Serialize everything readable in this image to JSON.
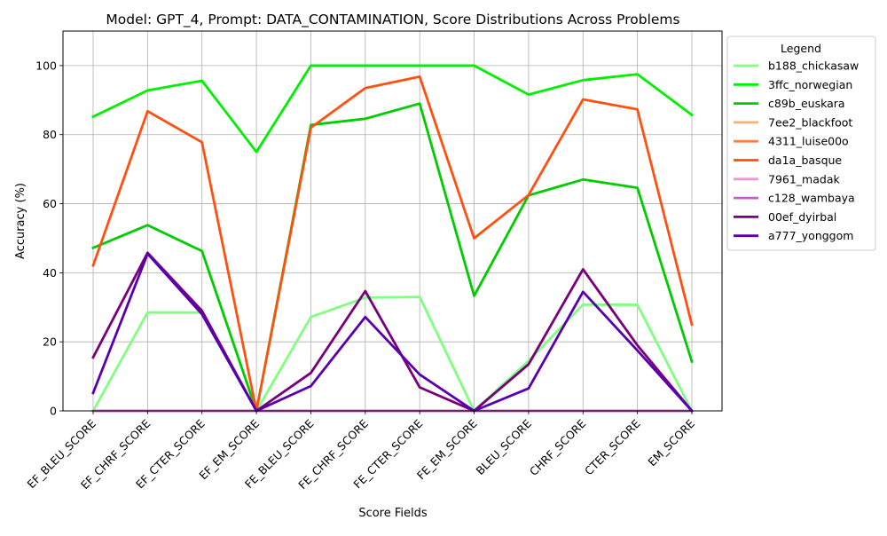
{
  "chart_data": {
    "type": "line",
    "title": "Model: GPT_4, Prompt: DATA_CONTAMINATION, Score Distributions Across Problems",
    "xlabel": "Score Fields",
    "ylabel": "Accuracy (%)",
    "ylim": [
      0,
      110
    ],
    "yticks": [
      0,
      20,
      40,
      60,
      80,
      100
    ],
    "grid": true,
    "legend_title": "Legend",
    "legend_position": "outside-right-top",
    "categories": [
      "EF_BLEU_SCORE",
      "EF_CHRF_SCORE",
      "EF_CTER_SCORE",
      "EF_EM_SCORE",
      "FE_BLEU_SCORE",
      "FE_CHRF_SCORE",
      "FE_CTER_SCORE",
      "FE_EM_SCORE",
      "BLEU_SCORE",
      "CHRF_SCORE",
      "CTER_SCORE",
      "EM_SCORE"
    ],
    "series": [
      {
        "name": "b188_chickasaw",
        "color": "#80ff80",
        "values": [
          0,
          28.5,
          28.5,
          0,
          27.2,
          32.8,
          33,
          0,
          14.5,
          30.8,
          30.7,
          0
        ]
      },
      {
        "name": "3ffc_norwegian",
        "color": "#00f000",
        "values": [
          85.2,
          92.8,
          95.6,
          75.0,
          100,
          100,
          100,
          100,
          91.6,
          95.8,
          97.5,
          85.7
        ]
      },
      {
        "name": "c89b_euskara",
        "color": "#00cc00",
        "values": [
          47.2,
          53.8,
          46.3,
          0,
          82.8,
          84.6,
          89.0,
          33.3,
          62.4,
          67.0,
          64.6,
          14.3
        ]
      },
      {
        "name": "7ee2_blackfoot",
        "color": "#ffb070",
        "values": [
          0,
          0,
          0,
          0,
          0,
          0,
          0,
          0,
          0,
          0,
          0,
          0
        ]
      },
      {
        "name": "4311_luise00o",
        "color": "#ff8040",
        "values": [
          0,
          0,
          0,
          0,
          0,
          0,
          0,
          0,
          0,
          0,
          0,
          0
        ]
      },
      {
        "name": "da1a_basque",
        "color": "#ff5010",
        "values": [
          42.1,
          86.8,
          77.8,
          0,
          82.0,
          93.5,
          96.8,
          50.0,
          62.5,
          90.2,
          87.3,
          25.0
        ]
      },
      {
        "name": "7961_madak",
        "color": "#e898d0",
        "values": [
          0,
          0,
          0,
          0,
          0,
          0,
          0,
          0,
          0,
          0,
          0,
          0
        ]
      },
      {
        "name": "c128_wambaya",
        "color": "#c060c8",
        "values": [
          0,
          0,
          0,
          0,
          0,
          0,
          0,
          0,
          0,
          0,
          0,
          0
        ]
      },
      {
        "name": "00ef_dyirbal",
        "color": "#7a007a",
        "values": [
          15.5,
          45.8,
          29.0,
          0,
          11.0,
          34.7,
          6.8,
          0,
          13.5,
          41.0,
          19.0,
          0
        ]
      },
      {
        "name": "a777_yonggom",
        "color": "#5800b0",
        "values": [
          5.2,
          45.5,
          28.0,
          0,
          7.2,
          27.2,
          10.5,
          0,
          6.5,
          34.5,
          17.5,
          0
        ]
      }
    ]
  }
}
